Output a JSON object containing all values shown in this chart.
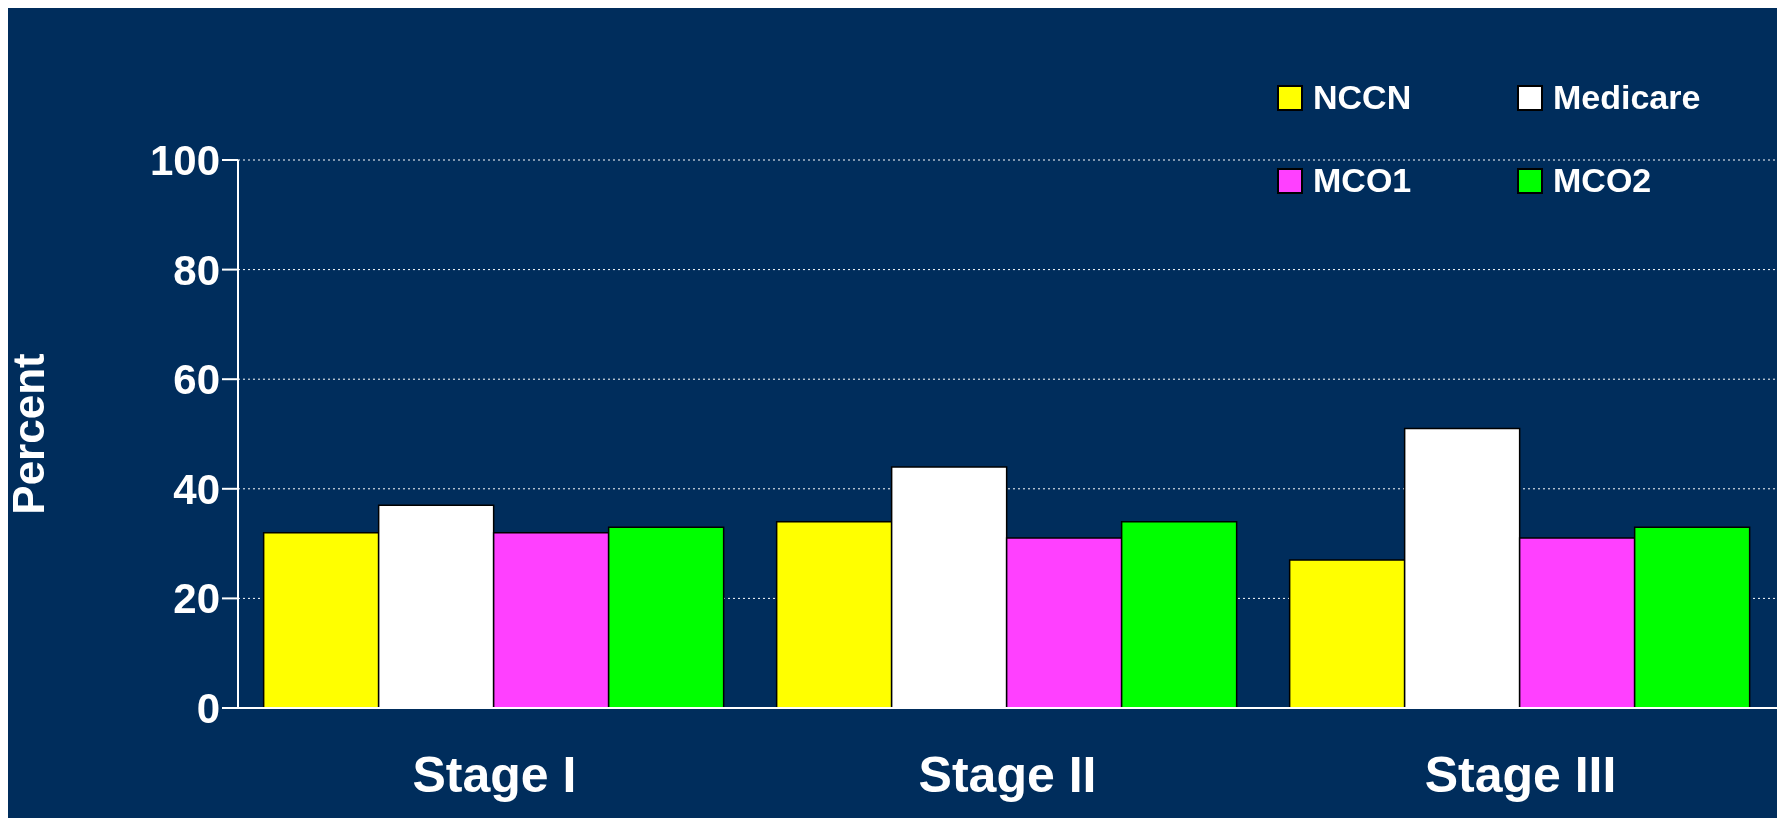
{
  "chart_data": {
    "type": "bar",
    "ylabel": "Percent",
    "categories": [
      "Stage I",
      "Stage II",
      "Stage III"
    ],
    "series": [
      {
        "name": "NCCN",
        "color": "#ffff00",
        "values": [
          32,
          34,
          27
        ]
      },
      {
        "name": "Medicare",
        "color": "#ffffff",
        "values": [
          37,
          44,
          51
        ]
      },
      {
        "name": "MCO1",
        "color": "#ff40ff",
        "values": [
          32,
          31,
          31
        ]
      },
      {
        "name": "MCO2",
        "color": "#00ff00",
        "values": [
          33,
          34,
          33
        ]
      }
    ],
    "ylim": [
      0,
      100
    ],
    "yticks": [
      0,
      20,
      40,
      60,
      80,
      100
    ],
    "grid": "y",
    "legend": "top right"
  }
}
